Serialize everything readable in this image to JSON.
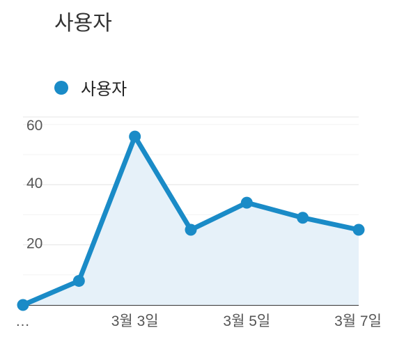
{
  "chart_data": {
    "type": "area",
    "title": "사용자",
    "legend": {
      "placement": "top-left",
      "entries": [
        "사용자"
      ]
    },
    "x": [
      "…",
      "",
      "3월 3일",
      "",
      "3월 5일",
      "",
      "3월 7일"
    ],
    "x_tick_labels": [
      "…",
      "3월 3일",
      "3월 5일",
      "3월 7일"
    ],
    "series": [
      {
        "name": "사용자",
        "color": "#1a8bc7",
        "values": [
          0,
          8,
          56,
          25,
          34,
          29,
          25
        ]
      }
    ],
    "ylim": [
      0,
      60
    ],
    "y_ticks": [
      20,
      40,
      60
    ],
    "grid": true
  }
}
